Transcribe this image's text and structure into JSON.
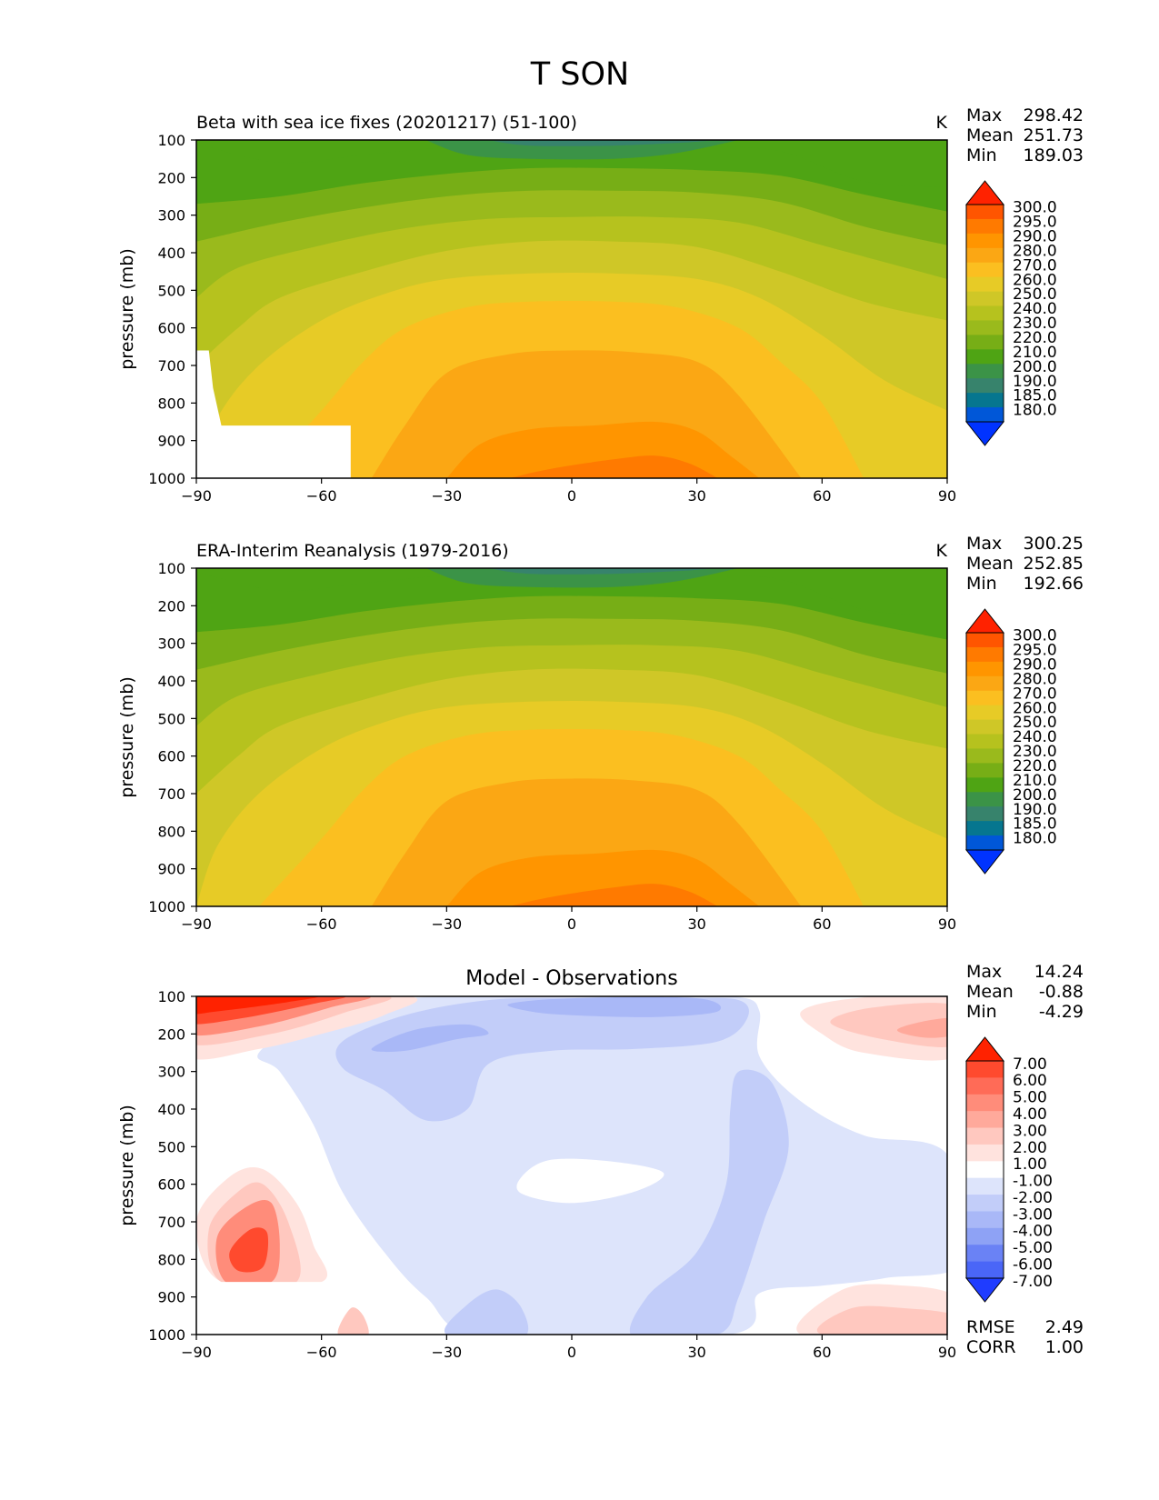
{
  "figure": {
    "title": "T SON"
  },
  "chart_data": [
    {
      "type": "contour",
      "title": "Beta with sea ice fixes (20201217) (51-100)",
      "units": "K",
      "ylabel": "pressure (mb)",
      "xlabel": "",
      "xlim": [
        -90,
        90
      ],
      "ylim": [
        1000,
        100
      ],
      "x_ticks": [
        "−90",
        "−60",
        "−30",
        "0",
        "30",
        "60",
        "90"
      ],
      "y_ticks": [
        "100",
        "200",
        "300",
        "400",
        "500",
        "600",
        "700",
        "800",
        "900",
        "1000"
      ],
      "stats": [
        {
          "label": "Max",
          "value": "298.42"
        },
        {
          "label": "Mean",
          "value": "251.73"
        },
        {
          "label": "Min",
          "value": "189.03"
        }
      ],
      "colorbar": {
        "levels": [
          "300.0",
          "295.0",
          "290.0",
          "280.0",
          "270.0",
          "260.0",
          "250.0",
          "240.0",
          "230.0",
          "220.0",
          "210.0",
          "200.0",
          "190.0",
          "185.0",
          "180.0"
        ],
        "colors": [
          "#ff2200",
          "#ff5500",
          "#ff7a00",
          "#ff9500",
          "#fba714",
          "#fbbf20",
          "#e7cb26",
          "#cfc727",
          "#b6c21e",
          "#9aba1c",
          "#77ae16",
          "#4fa414",
          "#3b9347",
          "#37836c",
          "#06768f",
          "#0057d8",
          "#0033ff"
        ]
      },
      "missing_region": "below-ground near south pole"
    },
    {
      "type": "contour",
      "title": "ERA-Interim Reanalysis (1979-2016)",
      "units": "K",
      "ylabel": "pressure (mb)",
      "xlabel": "",
      "xlim": [
        -90,
        90
      ],
      "ylim": [
        1000,
        100
      ],
      "x_ticks": [
        "−90",
        "−60",
        "−30",
        "0",
        "30",
        "60",
        "90"
      ],
      "y_ticks": [
        "100",
        "200",
        "300",
        "400",
        "500",
        "600",
        "700",
        "800",
        "900",
        "1000"
      ],
      "stats": [
        {
          "label": "Max",
          "value": "300.25"
        },
        {
          "label": "Mean",
          "value": "252.85"
        },
        {
          "label": "Min",
          "value": "192.66"
        }
      ],
      "colorbar": {
        "levels": [
          "300.0",
          "295.0",
          "290.0",
          "280.0",
          "270.0",
          "260.0",
          "250.0",
          "240.0",
          "230.0",
          "220.0",
          "210.0",
          "200.0",
          "190.0",
          "185.0",
          "180.0"
        ],
        "colors": [
          "#ff2200",
          "#ff5500",
          "#ff7a00",
          "#ff9500",
          "#fba714",
          "#fbbf20",
          "#e7cb26",
          "#cfc727",
          "#b6c21e",
          "#9aba1c",
          "#77ae16",
          "#4fa414",
          "#3b9347",
          "#37836c",
          "#06768f",
          "#0057d8",
          "#0033ff"
        ]
      }
    },
    {
      "type": "contour",
      "title": "Model - Observations",
      "units": "",
      "ylabel": "pressure (mb)",
      "xlabel": "",
      "xlim": [
        -90,
        90
      ],
      "ylim": [
        1000,
        100
      ],
      "x_ticks": [
        "−90",
        "−60",
        "−30",
        "0",
        "30",
        "60",
        "90"
      ],
      "y_ticks": [
        "100",
        "200",
        "300",
        "400",
        "500",
        "600",
        "700",
        "800",
        "900",
        "1000"
      ],
      "stats": [
        {
          "label": "Max",
          "value": "14.24"
        },
        {
          "label": "Mean",
          "value": "-0.88"
        },
        {
          "label": "Min",
          "value": "-4.29"
        }
      ],
      "extra_stats": [
        {
          "label": "RMSE",
          "value": "2.49"
        },
        {
          "label": "CORR",
          "value": "1.00"
        }
      ],
      "colorbar": {
        "levels": [
          "7.00",
          "6.00",
          "5.00",
          "4.00",
          "3.00",
          "2.00",
          "1.00",
          "-1.00",
          "-2.00",
          "-3.00",
          "-4.00",
          "-5.00",
          "-6.00",
          "-7.00"
        ],
        "colors": [
          "#ff2200",
          "#ff4a2e",
          "#ff6b57",
          "#ff8c7a",
          "#ffa99b",
          "#ffc8bf",
          "#ffe3de",
          "#ffffff",
          "#dde4fb",
          "#c2cdf9",
          "#a9b8f7",
          "#8ea2f5",
          "#6a82f5",
          "#4a66f7",
          "#1f3cff"
        ]
      }
    }
  ]
}
